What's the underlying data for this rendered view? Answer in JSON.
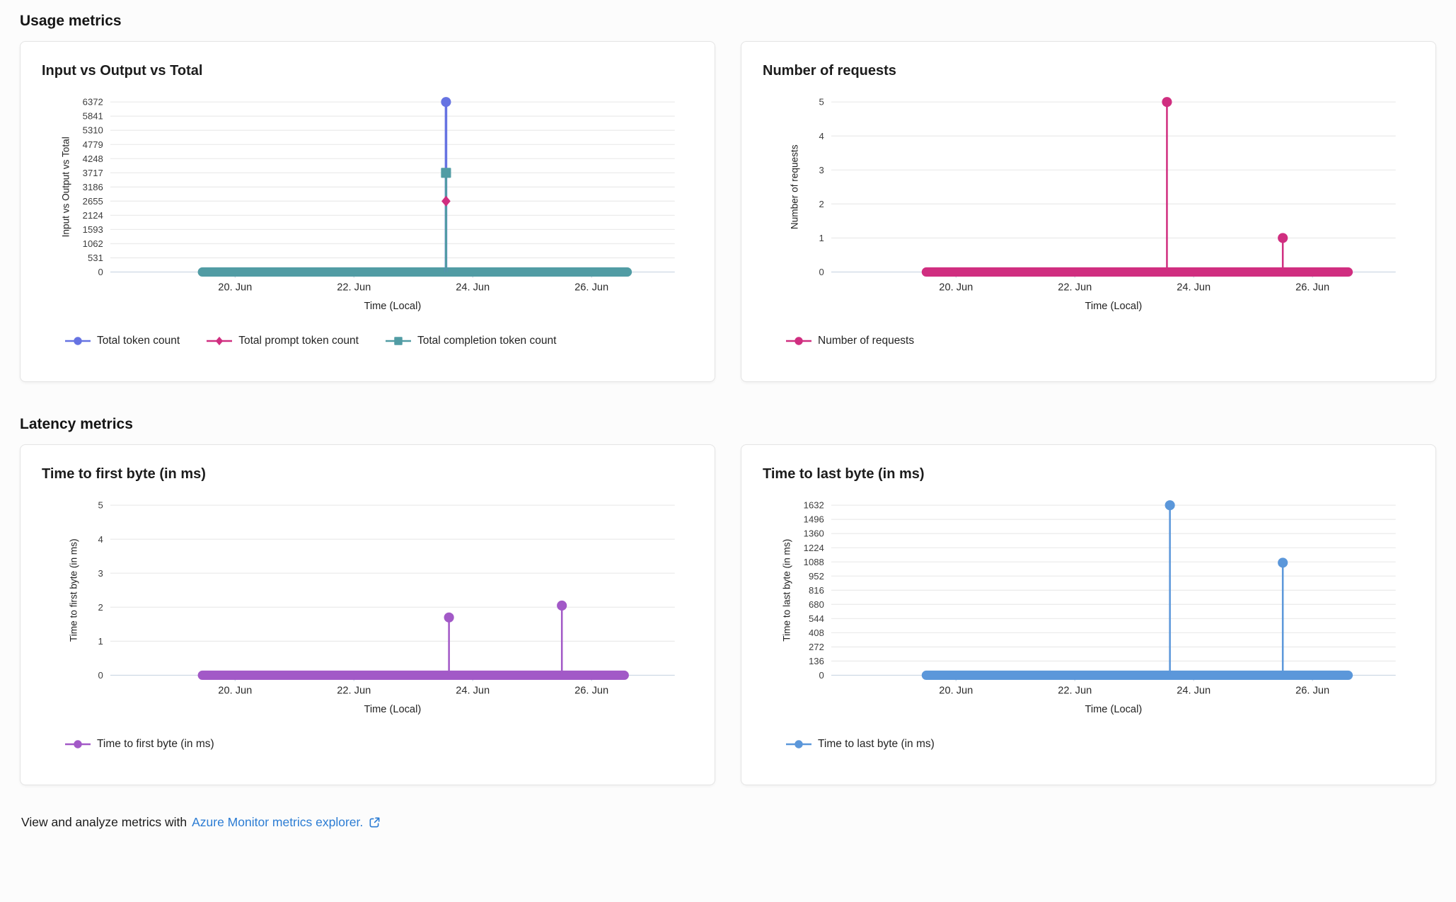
{
  "page": {
    "sections": [
      {
        "title": "Usage metrics"
      },
      {
        "title": "Latency metrics"
      }
    ],
    "footer": {
      "prefix": "View and analyze metrics with",
      "link_text": "Azure Monitor metrics explorer.",
      "link_color": "#2b7cd3",
      "icon": "external-link-icon"
    }
  },
  "colors": {
    "grid_line": "#ececec",
    "zero_axis_line": "#cdd9e5",
    "tick_mark": "#c2cfdd",
    "axis_label_text": "#3d3d3d",
    "x_label_text": "#2b2b2b",
    "axis_title_text": "#222222"
  },
  "chart_data": [
    {
      "type": "line",
      "title": "Input vs Output vs Total",
      "xlabel": "Time (Local)",
      "ylabel": "Input vs Output vs Total",
      "x_unit": "day of June",
      "x_domain": [
        17.9,
        27.4
      ],
      "x_ticks": [
        {
          "v": 20,
          "label": "20. Jun"
        },
        {
          "v": 22,
          "label": "22. Jun"
        },
        {
          "v": 24,
          "label": "24. Jun"
        },
        {
          "v": 26,
          "label": "26. Jun"
        }
      ],
      "y_ticks": [
        0,
        531,
        1062,
        1593,
        2124,
        2655,
        3186,
        3717,
        4248,
        4779,
        5310,
        5841,
        6372
      ],
      "ylim": [
        0,
        6372
      ],
      "grid": true,
      "legend_position": "bottom-left",
      "zero_band": {
        "x_start": 19.45,
        "x_end": 26.6,
        "y": 0,
        "color": "#519ca4"
      },
      "series": [
        {
          "name": "Total token count",
          "color": "#6673e2",
          "marker": "circle",
          "line_width": 3.5,
          "points": [
            {
              "x": 23.55,
              "y": 6372
            }
          ]
        },
        {
          "name": "Total prompt token count",
          "color": "#d02e80",
          "marker": "diamond",
          "line_width": 2,
          "points": [
            {
              "x": 23.55,
              "y": 2655
            }
          ]
        },
        {
          "name": "Total completion token count",
          "color": "#519ca4",
          "marker": "square",
          "line_width": 3,
          "points": [
            {
              "x": 23.55,
              "y": 3717
            }
          ]
        }
      ]
    },
    {
      "type": "line",
      "title": "Number of requests",
      "xlabel": "Time (Local)",
      "ylabel": "Number of requests",
      "x_unit": "day of June",
      "x_domain": [
        17.9,
        27.4
      ],
      "x_ticks": [
        {
          "v": 20,
          "label": "20. Jun"
        },
        {
          "v": 22,
          "label": "22. Jun"
        },
        {
          "v": 24,
          "label": "24. Jun"
        },
        {
          "v": 26,
          "label": "26. Jun"
        }
      ],
      "y_ticks": [
        0,
        1,
        2,
        3,
        4,
        5
      ],
      "ylim": [
        0,
        5
      ],
      "grid": true,
      "legend_position": "bottom-left",
      "zero_band": {
        "x_start": 19.5,
        "x_end": 26.6,
        "y": 0,
        "color": "#d02e80"
      },
      "series": [
        {
          "name": "Number of requests",
          "color": "#d02e80",
          "marker": "circle",
          "line_width": 2.5,
          "points": [
            {
              "x": 23.55,
              "y": 5
            },
            {
              "x": 25.5,
              "y": 1
            }
          ]
        }
      ]
    },
    {
      "type": "line",
      "title": "Time to first byte (in ms)",
      "xlabel": "Time (Local)",
      "ylabel": "Time to first byte (in ms)",
      "x_unit": "day of June",
      "x_domain": [
        17.9,
        27.4
      ],
      "x_ticks": [
        {
          "v": 20,
          "label": "20. Jun"
        },
        {
          "v": 22,
          "label": "22. Jun"
        },
        {
          "v": 24,
          "label": "24. Jun"
        },
        {
          "v": 26,
          "label": "26. Jun"
        }
      ],
      "y_ticks": [
        0,
        1,
        2,
        3,
        4,
        5
      ],
      "ylim": [
        0,
        5
      ],
      "grid": true,
      "legend_position": "bottom-left",
      "zero_band": {
        "x_start": 19.45,
        "x_end": 26.55,
        "y": 0,
        "color": "#a259c7"
      },
      "series": [
        {
          "name": "Time to first byte (in ms)",
          "color": "#a259c7",
          "marker": "circle",
          "line_width": 2.5,
          "points": [
            {
              "x": 23.6,
              "y": 1.7
            },
            {
              "x": 25.5,
              "y": 2.05
            }
          ]
        }
      ]
    },
    {
      "type": "line",
      "title": "Time to last byte (in ms)",
      "xlabel": "Time (Local)",
      "ylabel": "Time to last byte (in ms)",
      "x_unit": "day of June",
      "x_domain": [
        17.9,
        27.4
      ],
      "x_ticks": [
        {
          "v": 20,
          "label": "20. Jun"
        },
        {
          "v": 22,
          "label": "22. Jun"
        },
        {
          "v": 24,
          "label": "24. Jun"
        },
        {
          "v": 26,
          "label": "26. Jun"
        }
      ],
      "y_ticks": [
        0,
        136,
        272,
        408,
        544,
        680,
        816,
        952,
        1088,
        1224,
        1360,
        1496,
        1632
      ],
      "ylim": [
        0,
        1632
      ],
      "grid": true,
      "legend_position": "bottom-left",
      "zero_band": {
        "x_start": 19.5,
        "x_end": 26.6,
        "y": 0,
        "color": "#5b97da"
      },
      "series": [
        {
          "name": "Time to last byte (in ms)",
          "color": "#5b97da",
          "marker": "circle",
          "line_width": 2.5,
          "points": [
            {
              "x": 23.6,
              "y": 1632
            },
            {
              "x": 25.5,
              "y": 1080
            }
          ]
        }
      ]
    }
  ]
}
